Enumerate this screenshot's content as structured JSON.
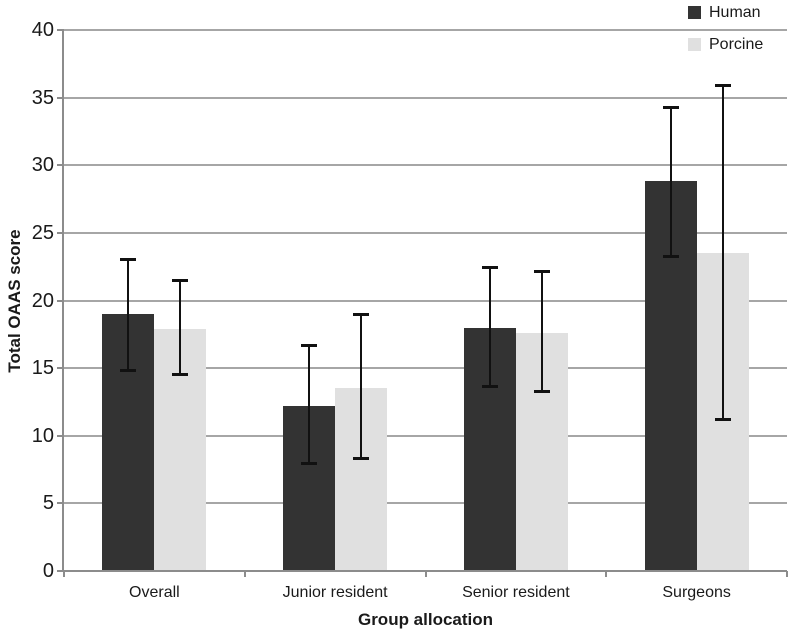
{
  "chart_data": {
    "type": "bar",
    "xlabel": "Group allocation",
    "ylabel": "Total OAAS score",
    "categories": [
      "Overall",
      "Junior resident",
      "Senior resident",
      "Surgeons"
    ],
    "series": [
      {
        "name": "Human",
        "color": "#333333",
        "values": [
          19.0,
          12.2,
          18.0,
          28.8
        ],
        "error_low": [
          14.8,
          7.9,
          13.6,
          23.2
        ],
        "error_high": [
          23.1,
          16.7,
          22.5,
          34.3
        ]
      },
      {
        "name": "Porcine",
        "color": "#e0e0e0",
        "values": [
          17.9,
          13.5,
          17.6,
          23.5
        ],
        "error_low": [
          14.5,
          8.3,
          13.2,
          11.2
        ],
        "error_high": [
          21.5,
          19.0,
          22.2,
          35.9
        ]
      }
    ],
    "ylim": [
      0,
      40
    ],
    "ytick_step": 5,
    "grid": true,
    "legend_position": "top-right",
    "gridline_color": "#a6a6a6",
    "axis_color": "#8c8c8c",
    "error_bar_color": "#111111"
  }
}
